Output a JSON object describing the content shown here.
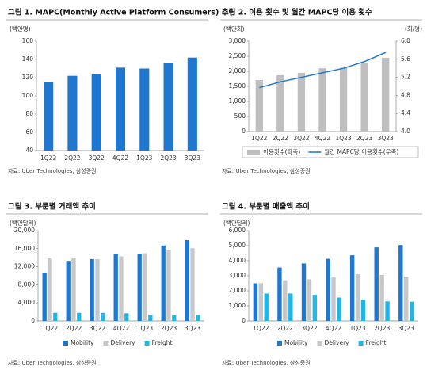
{
  "chart_data": [
    {
      "type": "bar",
      "title": "그림 1. MAPC(Monthly Active Platform Consumers) 추이",
      "y_label": "(백만명)",
      "source": "자료: Uber Technologies, 삼성증권",
      "categories": [
        "1Q22",
        "2Q22",
        "3Q22",
        "4Q22",
        "1Q23",
        "2Q23",
        "3Q23"
      ],
      "values": [
        115,
        122,
        124,
        131,
        130,
        136,
        142
      ],
      "color": "#1f77d0",
      "ylim": [
        40,
        160
      ],
      "yticks": [
        40,
        60,
        80,
        100,
        120,
        140,
        160
      ]
    },
    {
      "type": "combo",
      "title": "그림 2. 이용 횟수 및 월간 MAPC당 이용 횟수",
      "y_label": "(백만회)",
      "y2_label": "(회/명)",
      "source": "자료: Uber Technologies, 삼성증권",
      "categories": [
        "1Q22",
        "2Q22",
        "3Q22",
        "4Q22",
        "1Q23",
        "2Q23",
        "3Q23"
      ],
      "series": [
        {
          "name": "이용횟수(좌축)",
          "color": "#bfbfbf",
          "kind": "bar",
          "values": [
            1710,
            1870,
            1950,
            2100,
            2120,
            2280,
            2450
          ]
        },
        {
          "name": "월간 MAPC당 이용횟수(우축)",
          "color": "#1f77d0",
          "kind": "line",
          "axis": "y2",
          "values": [
            4.97,
            5.1,
            5.2,
            5.3,
            5.4,
            5.55,
            5.75
          ]
        }
      ],
      "ylim": [
        0,
        3000
      ],
      "yticks": [
        0,
        500,
        {
          "value": 1000,
          "label": "1,000"
        },
        {
          "value": 1500,
          "label": "1,500"
        },
        {
          "value": 2000,
          "label": "2,000"
        },
        {
          "value": 2500,
          "label": "2,500"
        },
        {
          "value": 3000,
          "label": "3,000"
        }
      ],
      "y2lim": [
        4,
        6
      ],
      "y2ticks": [
        {
          "value": 4,
          "label": "4.0"
        },
        4.4,
        4.8,
        5.2,
        5.6,
        {
          "value": 6,
          "label": "6.0"
        }
      ],
      "legend": "bottom"
    },
    {
      "type": "bar",
      "title": "그림 3. 부문별 거래액 추이",
      "y_label": "(백만달러)",
      "source": "자료: Uber Technologies, 삼성증권",
      "categories": [
        "1Q22",
        "2Q22",
        "3Q22",
        "4Q22",
        "1Q23",
        "2Q23",
        "3Q23"
      ],
      "series": [
        {
          "name": "Mobility",
          "color": "#1f77d0",
          "values": [
            10700,
            13300,
            13700,
            14900,
            14900,
            16700,
            17900
          ]
        },
        {
          "name": "Delivery",
          "color": "#c8c8c8",
          "values": [
            13900,
            13900,
            13700,
            14300,
            15000,
            15600,
            16100
          ]
        },
        {
          "name": "Freight",
          "color": "#1fb6e8",
          "values": [
            1800,
            1800,
            1800,
            1700,
            1400,
            1300,
            1300
          ]
        }
      ],
      "ylim": [
        0,
        20000
      ],
      "yticks": [
        0,
        {
          "value": 4000,
          "label": "4,000"
        },
        {
          "value": 8000,
          "label": "8,000"
        },
        {
          "value": 12000,
          "label": "12,000"
        },
        {
          "value": 16000,
          "label": "16,000"
        },
        {
          "value": 20000,
          "label": "20,000"
        }
      ],
      "legend": "bottom"
    },
    {
      "type": "bar",
      "title": "그림 4. 부문별 매출액 추이",
      "y_label": "(백만달러)",
      "source": "자료: Uber Technologies, 삼성증권",
      "categories": [
        "1Q22",
        "2Q22",
        "3Q22",
        "4Q22",
        "1Q23",
        "2Q23",
        "3Q23"
      ],
      "series": [
        {
          "name": "Mobility",
          "color": "#1f77d0",
          "values": [
            2500,
            3550,
            3820,
            4130,
            4360,
            4890,
            5040
          ]
        },
        {
          "name": "Delivery",
          "color": "#c8c8c8",
          "values": [
            2510,
            2700,
            2770,
            2940,
            3100,
            3060,
            2940
          ]
        },
        {
          "name": "Freight",
          "color": "#1fb6e8",
          "values": [
            1820,
            1820,
            1730,
            1550,
            1400,
            1300,
            1280
          ]
        }
      ],
      "ylim": [
        0,
        6000
      ],
      "yticks": [
        0,
        {
          "value": 1000,
          "label": "1,000"
        },
        {
          "value": 2000,
          "label": "2,000"
        },
        {
          "value": 3000,
          "label": "3,000"
        },
        {
          "value": 4000,
          "label": "4,000"
        },
        {
          "value": 5000,
          "label": "5,000"
        },
        {
          "value": 6000,
          "label": "6,000"
        }
      ],
      "legend": "bottom"
    }
  ]
}
